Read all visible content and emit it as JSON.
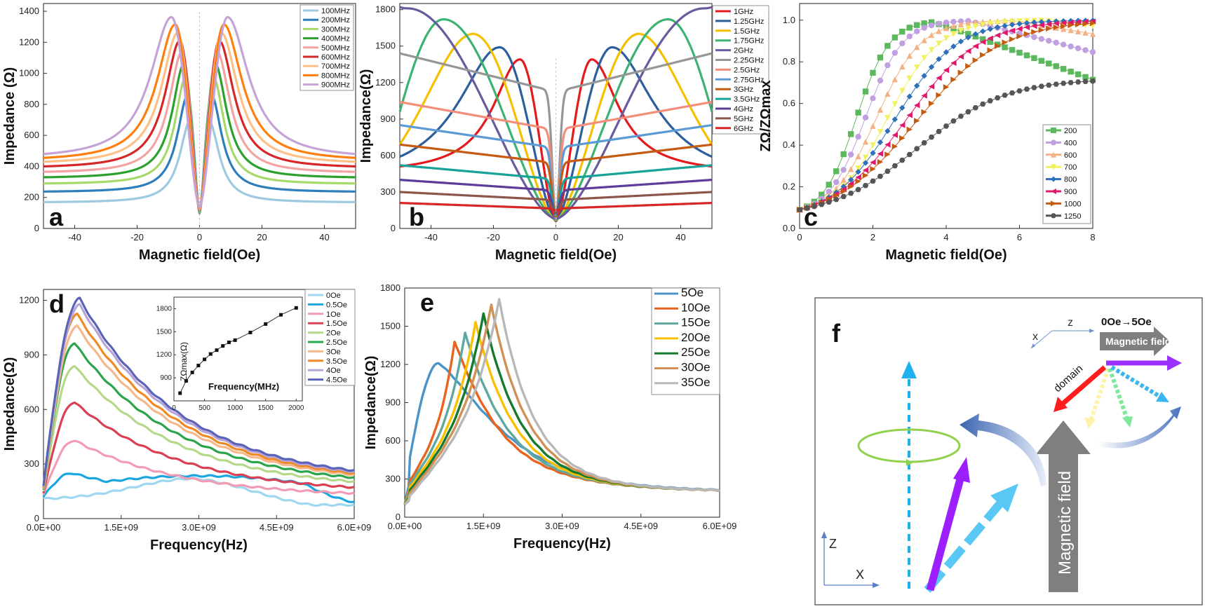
{
  "chart_data": [
    {
      "panel": "a",
      "type": "line",
      "xlabel": "Magnetic field(Oe)",
      "ylabel": "Impedance (Ω)",
      "xlim": [
        -50,
        50
      ],
      "ylim": [
        0,
        1450
      ],
      "xticks": [
        -40,
        -20,
        0,
        20,
        40
      ],
      "yticks": [
        0,
        200,
        400,
        600,
        800,
        1000,
        1200,
        1400
      ],
      "legend_position": "top-right",
      "series": [
        {
          "name": "100MHz",
          "color": "#9ecae1",
          "peak_field": 3.0,
          "peak": 695,
          "min": 95,
          "edge": 170
        },
        {
          "name": "200MHz",
          "color": "#2f7ebc",
          "peak_field": 3.8,
          "peak": 858,
          "min": 100,
          "edge": 238
        },
        {
          "name": "300MHz",
          "color": "#a6d96a",
          "peak_field": 4.5,
          "peak": 970,
          "min": 105,
          "edge": 290
        },
        {
          "name": "400MHz",
          "color": "#2ca02c",
          "peak_field": 5.0,
          "peak": 1060,
          "min": 110,
          "edge": 330
        },
        {
          "name": "500MHz",
          "color": "#f4a3a3",
          "peak_field": 5.6,
          "peak": 1140,
          "min": 115,
          "edge": 365
        },
        {
          "name": "600MHz",
          "color": "#d62728",
          "peak_field": 6.3,
          "peak": 1210,
          "min": 120,
          "edge": 400
        },
        {
          "name": "700MHz",
          "color": "#fdc086",
          "peak_field": 7.0,
          "peak": 1260,
          "min": 125,
          "edge": 430
        },
        {
          "name": "800MHz",
          "color": "#ff7f0e",
          "peak_field": 7.8,
          "peak": 1315,
          "min": 130,
          "edge": 455
        },
        {
          "name": "900MHz",
          "color": "#c5a3d6",
          "peak_field": 9.0,
          "peak": 1362,
          "min": 135,
          "edge": 480
        }
      ]
    },
    {
      "panel": "b",
      "type": "line",
      "xlabel": "Magnetic field(Oe)",
      "ylabel": "Impedance(Ω)",
      "xlim": [
        -50,
        50
      ],
      "ylim": [
        0,
        1850
      ],
      "xticks": [
        -40,
        -20,
        0,
        20,
        40
      ],
      "yticks": [
        0,
        300,
        600,
        900,
        1200,
        1500,
        1800
      ],
      "legend_position": "top-right",
      "series": [
        {
          "name": "1GHz",
          "color": "#e41a1c",
          "peak_field": 11.5,
          "peak": 1390,
          "min": 60,
          "edge": 510
        },
        {
          "name": "1.25GHz",
          "color": "#2c5e9e",
          "peak_field": 18.0,
          "peak": 1490,
          "min": 65,
          "edge": 590
        },
        {
          "name": "1.5GHz",
          "color": "#f5c000",
          "peak_field": 26.5,
          "peak": 1600,
          "min": 70,
          "edge": 690
        },
        {
          "name": "1.75GHz",
          "color": "#3cb371",
          "peak_field": 36.0,
          "peak": 1720,
          "min": 75,
          "edge": 960
        },
        {
          "name": "2GHz",
          "color": "#6a5a9e",
          "peak_field": 47.5,
          "peak": 1810,
          "min": 80,
          "edge": 1820
        },
        {
          "name": "2.25GHz",
          "color": "#969696",
          "peak_field": null,
          "peak": null,
          "min": 85,
          "edge": 1440
        },
        {
          "name": "2.5GHz",
          "color": "#f28e79",
          "peak_field": null,
          "peak": null,
          "min": 90,
          "edge": 1040
        },
        {
          "name": "2.75GHz",
          "color": "#5b9bd5",
          "peak_field": null,
          "peak": null,
          "min": 95,
          "edge": 850
        },
        {
          "name": "3GHz",
          "color": "#c55a11",
          "peak_field": null,
          "peak": null,
          "min": 100,
          "edge": 690
        },
        {
          "name": "3.5GHz",
          "color": "#17a398",
          "peak_field": null,
          "peak": null,
          "min": 110,
          "edge": 520
        },
        {
          "name": "4GHz",
          "color": "#5e3c99",
          "peak_field": null,
          "peak": null,
          "min": 120,
          "edge": 400
        },
        {
          "name": "5GHz",
          "color": "#8c564b",
          "peak_field": null,
          "peak": null,
          "min": 130,
          "edge": 300
        },
        {
          "name": "6GHz",
          "color": "#d62728",
          "peak_field": null,
          "peak": null,
          "min": 150,
          "edge": 210
        }
      ]
    },
    {
      "panel": "c",
      "type": "scatter",
      "xlabel": "Magnetic field(Oe)",
      "ylabel": "ZΩ/ZΩmax",
      "xlim": [
        0,
        8
      ],
      "ylim": [
        0,
        1.08
      ],
      "xticks": [
        0,
        2,
        4,
        6,
        8
      ],
      "yticks": [
        0.0,
        0.2,
        0.4,
        0.6,
        0.8,
        1.0
      ],
      "legend_position": "bottom-right",
      "series": [
        {
          "name": "200",
          "color": "#5cb85c",
          "marker": "square",
          "x_half": 1.55,
          "sharp": 0.45,
          "peak_field": 3.6,
          "decay": 0.065
        },
        {
          "name": "400",
          "color": "#c0a0e0",
          "marker": "circle",
          "x_half": 1.8,
          "sharp": 0.5,
          "peak_field": 4.6,
          "decay": 0.045
        },
        {
          "name": "600",
          "color": "#f4b183",
          "marker": "triangle-up",
          "x_half": 2.1,
          "sharp": 0.6,
          "peak_field": 5.8,
          "decay": 0.03
        },
        {
          "name": "700",
          "color": "#f0f060",
          "marker": "triangle-down",
          "x_half": 2.4,
          "sharp": 0.7,
          "peak_field": 6.6,
          "decay": 0.02
        },
        {
          "name": "800",
          "color": "#2e6fba",
          "marker": "diamond",
          "x_half": 2.6,
          "sharp": 0.85,
          "peak_field": 7.6,
          "decay": 0.0
        },
        {
          "name": "900",
          "color": "#e0186c",
          "marker": "triangle-left",
          "x_half": 2.9,
          "sharp": 1.0,
          "peak_field": 8.2,
          "decay": 0.0
        },
        {
          "name": "1000",
          "color": "#c55a11",
          "marker": "triangle-right",
          "x_half": 3.2,
          "sharp": 1.15,
          "peak_field": 9.0,
          "decay": 0.0
        },
        {
          "name": "1250",
          "color": "#555555",
          "marker": "hexagon",
          "x_half": 3.2,
          "sharp": 1.2,
          "peak_field": 9.5,
          "decay": 0.0,
          "scale": 0.72
        }
      ]
    },
    {
      "panel": "d",
      "type": "line",
      "xlabel": "Frequency(Hz)",
      "ylabel": "Impedance(Ω)",
      "xlim": [
        0,
        6000000000.0
      ],
      "ylim": [
        0,
        1260
      ],
      "xticks": [
        0,
        1500000000.0,
        3000000000.0,
        4500000000.0,
        6000000000.0
      ],
      "xtick_labels": [
        "0.0E+00",
        "1.5E+09",
        "3.0E+09",
        "4.5E+09",
        "6.0E+09"
      ],
      "yticks": [
        0,
        300,
        600,
        900,
        1200
      ],
      "legend_position": "top-right",
      "series": [
        {
          "name": "0Oe",
          "color": "#9ed8f0",
          "peak_freq": 2900000000.0,
          "peak": 220,
          "start": 105,
          "end": 75
        },
        {
          "name": "0.5Oe",
          "color": "#1aa7e0",
          "peak_freq": 550000000.0,
          "peak": 250,
          "start": 120,
          "end": 90
        },
        {
          "name": "1Oe",
          "color": "#f19bb5",
          "peak_freq": 600000000.0,
          "peak": 430,
          "start": 130,
          "end": 120
        },
        {
          "name": "1.5Oe",
          "color": "#d94053",
          "peak_freq": 600000000.0,
          "peak": 640,
          "start": 140,
          "end": 140
        },
        {
          "name": "2Oe",
          "color": "#b5d88a",
          "peak_freq": 600000000.0,
          "peak": 840,
          "start": 150,
          "end": 160
        },
        {
          "name": "2.5Oe",
          "color": "#2ca44a",
          "peak_freq": 600000000.0,
          "peak": 965,
          "start": 160,
          "end": 175
        },
        {
          "name": "3Oe",
          "color": "#f5b88a",
          "peak_freq": 650000000.0,
          "peak": 1060,
          "start": 165,
          "end": 185
        },
        {
          "name": "3.5Oe",
          "color": "#f08a24",
          "peak_freq": 650000000.0,
          "peak": 1125,
          "start": 170,
          "end": 190
        },
        {
          "name": "4Oe",
          "color": "#b7a4d8",
          "peak_freq": 700000000.0,
          "peak": 1175,
          "start": 175,
          "end": 195
        },
        {
          "name": "4.5Oe",
          "color": "#5a63b8",
          "peak_freq": 700000000.0,
          "peak": 1210,
          "start": 180,
          "end": 200
        }
      ],
      "inset": {
        "type": "scatter-line",
        "xlabel": "Frequency(MHz)",
        "ylabel": "ZΩmax(Ω)",
        "xlim": [
          0,
          2100
        ],
        "ylim": [
          600,
          1950
        ],
        "xticks": [
          0,
          500,
          1000,
          1500,
          2000
        ],
        "yticks": [
          900,
          1200,
          1500,
          1800
        ],
        "x": [
          100,
          200,
          300,
          400,
          500,
          600,
          700,
          800,
          900,
          1000,
          1250,
          1500,
          1750,
          2000
        ],
        "y": [
          700,
          860,
          970,
          1060,
          1140,
          1210,
          1260,
          1315,
          1362,
          1390,
          1490,
          1600,
          1720,
          1810
        ]
      }
    },
    {
      "panel": "e",
      "type": "line",
      "xlabel": "Frequency(Hz)",
      "ylabel": "Impedance(Ω)",
      "xlim": [
        0,
        6000000000.0
      ],
      "ylim": [
        0,
        1800
      ],
      "xticks": [
        0,
        1500000000.0,
        3000000000.0,
        4500000000.0,
        6000000000.0
      ],
      "xtick_labels": [
        "0.0E+00",
        "1.5E+09",
        "3.0E+09",
        "4.5E+09",
        "6.0E+09"
      ],
      "yticks": [
        0,
        300,
        600,
        900,
        1200,
        1500,
        1800
      ],
      "legend_position": "top-right",
      "series": [
        {
          "name": "5Oe",
          "color": "#4c93c8",
          "peak_freq": 650000000.0,
          "peak": 1210,
          "start": 240
        },
        {
          "name": "10Oe",
          "color": "#e8641e",
          "peak_freq": 950000000.0,
          "peak": 1380,
          "start": 220
        },
        {
          "name": "15Oe",
          "color": "#5fa8a0",
          "peak_freq": 1150000000.0,
          "peak": 1450,
          "start": 200
        },
        {
          "name": "20Oe",
          "color": "#f8c000",
          "peak_freq": 1350000000.0,
          "peak": 1530,
          "start": 180
        },
        {
          "name": "25Oe",
          "color": "#157a2e",
          "peak_freq": 1500000000.0,
          "peak": 1600,
          "start": 160
        },
        {
          "name": "30Oe",
          "color": "#d09056",
          "peak_freq": 1650000000.0,
          "peak": 1670,
          "start": 140
        },
        {
          "name": "35Oe",
          "color": "#b8b8b8",
          "peak_freq": 1800000000.0,
          "peak": 1710,
          "start": 120
        }
      ],
      "end_value": 195
    }
  ],
  "panels": {
    "a": "a",
    "b": "b",
    "c": "c",
    "d": "d",
    "e": "e",
    "f": "f"
  },
  "diagram_f": {
    "axis_top_x": "x",
    "axis_top_z": "z",
    "field_range": "0Oe→5Oe",
    "field_label_small": "Magnetic field",
    "domain_label": "domain",
    "field_label_big": "Magnetic field",
    "axis_bottom_z": "Z",
    "axis_bottom_x": "X"
  }
}
